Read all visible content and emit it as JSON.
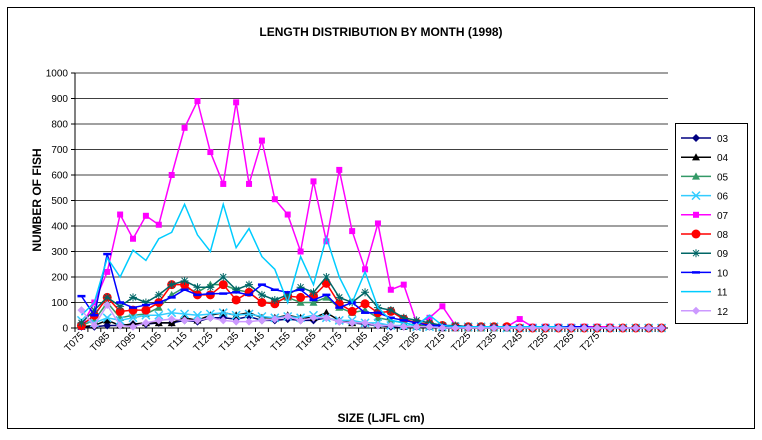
{
  "chart_data": {
    "type": "line",
    "title": "LENGTH DISTRIBUTION BY MONTH (1998)",
    "x_label": "SIZE (LJFL cm)",
    "y_label": "NUMBER OF FISH",
    "categories": [
      "T075",
      null,
      "T085",
      null,
      "T095",
      null,
      "T105",
      null,
      "T115",
      null,
      "T125",
      null,
      "T135",
      null,
      "T145",
      null,
      "T155",
      null,
      "T165",
      null,
      "T175",
      null,
      "T185",
      null,
      "T195",
      null,
      "T205",
      null,
      "T215",
      null,
      "T225",
      null,
      "T235",
      null,
      "T245",
      null,
      "T255",
      null,
      "T265",
      null,
      "T275",
      null,
      null,
      null,
      null,
      null
    ],
    "ylim": [
      0,
      1000
    ],
    "yticks": [
      0,
      100,
      200,
      300,
      400,
      500,
      600,
      700,
      800,
      900,
      1000
    ],
    "grid": true,
    "legend": "right",
    "series": [
      {
        "name": "03",
        "color": "#000080",
        "marker": "diamond",
        "values": [
          5,
          5,
          10,
          10,
          15,
          15,
          20,
          20,
          30,
          25,
          40,
          40,
          35,
          45,
          30,
          30,
          35,
          30,
          30,
          40,
          25,
          20,
          15,
          10,
          5,
          5,
          5,
          5,
          0,
          0,
          0,
          0,
          0,
          0,
          0,
          0,
          0,
          0,
          0,
          0,
          0,
          0,
          0,
          0,
          0,
          0
        ]
      },
      {
        "name": "04",
        "color": "#000000",
        "marker": "triangle",
        "values": [
          5,
          10,
          30,
          10,
          15,
          20,
          20,
          20,
          40,
          30,
          50,
          60,
          50,
          60,
          40,
          40,
          50,
          40,
          40,
          60,
          30,
          20,
          20,
          10,
          10,
          5,
          5,
          5,
          0,
          0,
          0,
          0,
          0,
          0,
          0,
          0,
          0,
          0,
          0,
          0,
          0,
          0,
          0,
          0,
          0,
          0
        ]
      },
      {
        "name": "05",
        "color": "#339966",
        "marker": "triangle",
        "values": [
          10,
          30,
          100,
          40,
          50,
          55,
          80,
          130,
          160,
          140,
          170,
          170,
          150,
          140,
          100,
          100,
          120,
          100,
          100,
          120,
          80,
          60,
          70,
          40,
          30,
          20,
          10,
          10,
          5,
          5,
          0,
          0,
          0,
          0,
          0,
          0,
          0,
          0,
          0,
          0,
          0,
          0,
          0,
          0,
          0,
          0
        ]
      },
      {
        "name": "06",
        "color": "#33ccff",
        "marker": "x",
        "values": [
          30,
          20,
          40,
          30,
          40,
          50,
          50,
          60,
          55,
          50,
          55,
          60,
          50,
          55,
          45,
          40,
          45,
          40,
          50,
          40,
          30,
          30,
          20,
          20,
          10,
          10,
          5,
          5,
          5,
          5,
          5,
          5,
          5,
          0,
          0,
          0,
          0,
          0,
          0,
          0,
          0,
          0,
          0,
          0,
          0,
          0
        ]
      },
      {
        "name": "07",
        "color": "#ff00ff",
        "marker": "square",
        "values": [
          5,
          100,
          220,
          445,
          350,
          440,
          405,
          600,
          785,
          890,
          690,
          565,
          885,
          565,
          735,
          505,
          445,
          300,
          575,
          340,
          620,
          380,
          230,
          410,
          150,
          170,
          20,
          40,
          85,
          10,
          5,
          5,
          5,
          5,
          35,
          5,
          5,
          5,
          5,
          5,
          5,
          5,
          0,
          0,
          0,
          0
        ]
      },
      {
        "name": "08",
        "color": "#ff0000",
        "marker": "circle",
        "values": [
          10,
          50,
          120,
          65,
          70,
          70,
          100,
          170,
          170,
          130,
          130,
          170,
          110,
          140,
          100,
          95,
          125,
          120,
          125,
          175,
          95,
          65,
          95,
          60,
          65,
          35,
          20,
          15,
          10,
          5,
          5,
          5,
          5,
          5,
          0,
          0,
          0,
          0,
          0,
          0,
          0,
          0,
          0,
          0,
          0,
          0
        ]
      },
      {
        "name": "09",
        "color": "#006666",
        "marker": "star",
        "values": [
          20,
          70,
          120,
          85,
          120,
          100,
          130,
          170,
          185,
          160,
          160,
          200,
          150,
          170,
          130,
          110,
          130,
          160,
          140,
          200,
          120,
          100,
          140,
          80,
          70,
          40,
          30,
          20,
          10,
          10,
          5,
          5,
          5,
          0,
          0,
          0,
          0,
          0,
          0,
          0,
          0,
          0,
          0,
          0,
          0,
          0
        ]
      },
      {
        "name": "10",
        "color": "#0000ff",
        "marker": "dash",
        "values": [
          125,
          50,
          290,
          100,
          80,
          90,
          100,
          120,
          150,
          130,
          135,
          135,
          140,
          130,
          170,
          150,
          140,
          150,
          110,
          130,
          80,
          100,
          60,
          60,
          40,
          30,
          20,
          10,
          10,
          5,
          5,
          5,
          5,
          5,
          5,
          5,
          5,
          5,
          5,
          5,
          0,
          0,
          0,
          0,
          0,
          0
        ]
      },
      {
        "name": "11",
        "color": "#00ccff",
        "marker": "none",
        "values": [
          50,
          100,
          275,
          200,
          305,
          265,
          350,
          375,
          485,
          365,
          300,
          485,
          315,
          390,
          280,
          230,
          100,
          280,
          170,
          355,
          200,
          100,
          220,
          80,
          30,
          20,
          10,
          50,
          10,
          5,
          5,
          5,
          5,
          5,
          5,
          5,
          5,
          5,
          0,
          0,
          0,
          0,
          0,
          0,
          0,
          0
        ]
      },
      {
        "name": "12",
        "color": "#cc99ff",
        "marker": "diamond",
        "values": [
          70,
          10,
          90,
          10,
          5,
          20,
          30,
          35,
          30,
          30,
          40,
          30,
          25,
          25,
          30,
          35,
          45,
          30,
          40,
          40,
          25,
          20,
          20,
          10,
          10,
          5,
          5,
          5,
          0,
          0,
          0,
          0,
          0,
          0,
          0,
          0,
          0,
          0,
          0,
          0,
          0,
          0,
          0,
          0,
          0,
          0
        ]
      }
    ]
  }
}
